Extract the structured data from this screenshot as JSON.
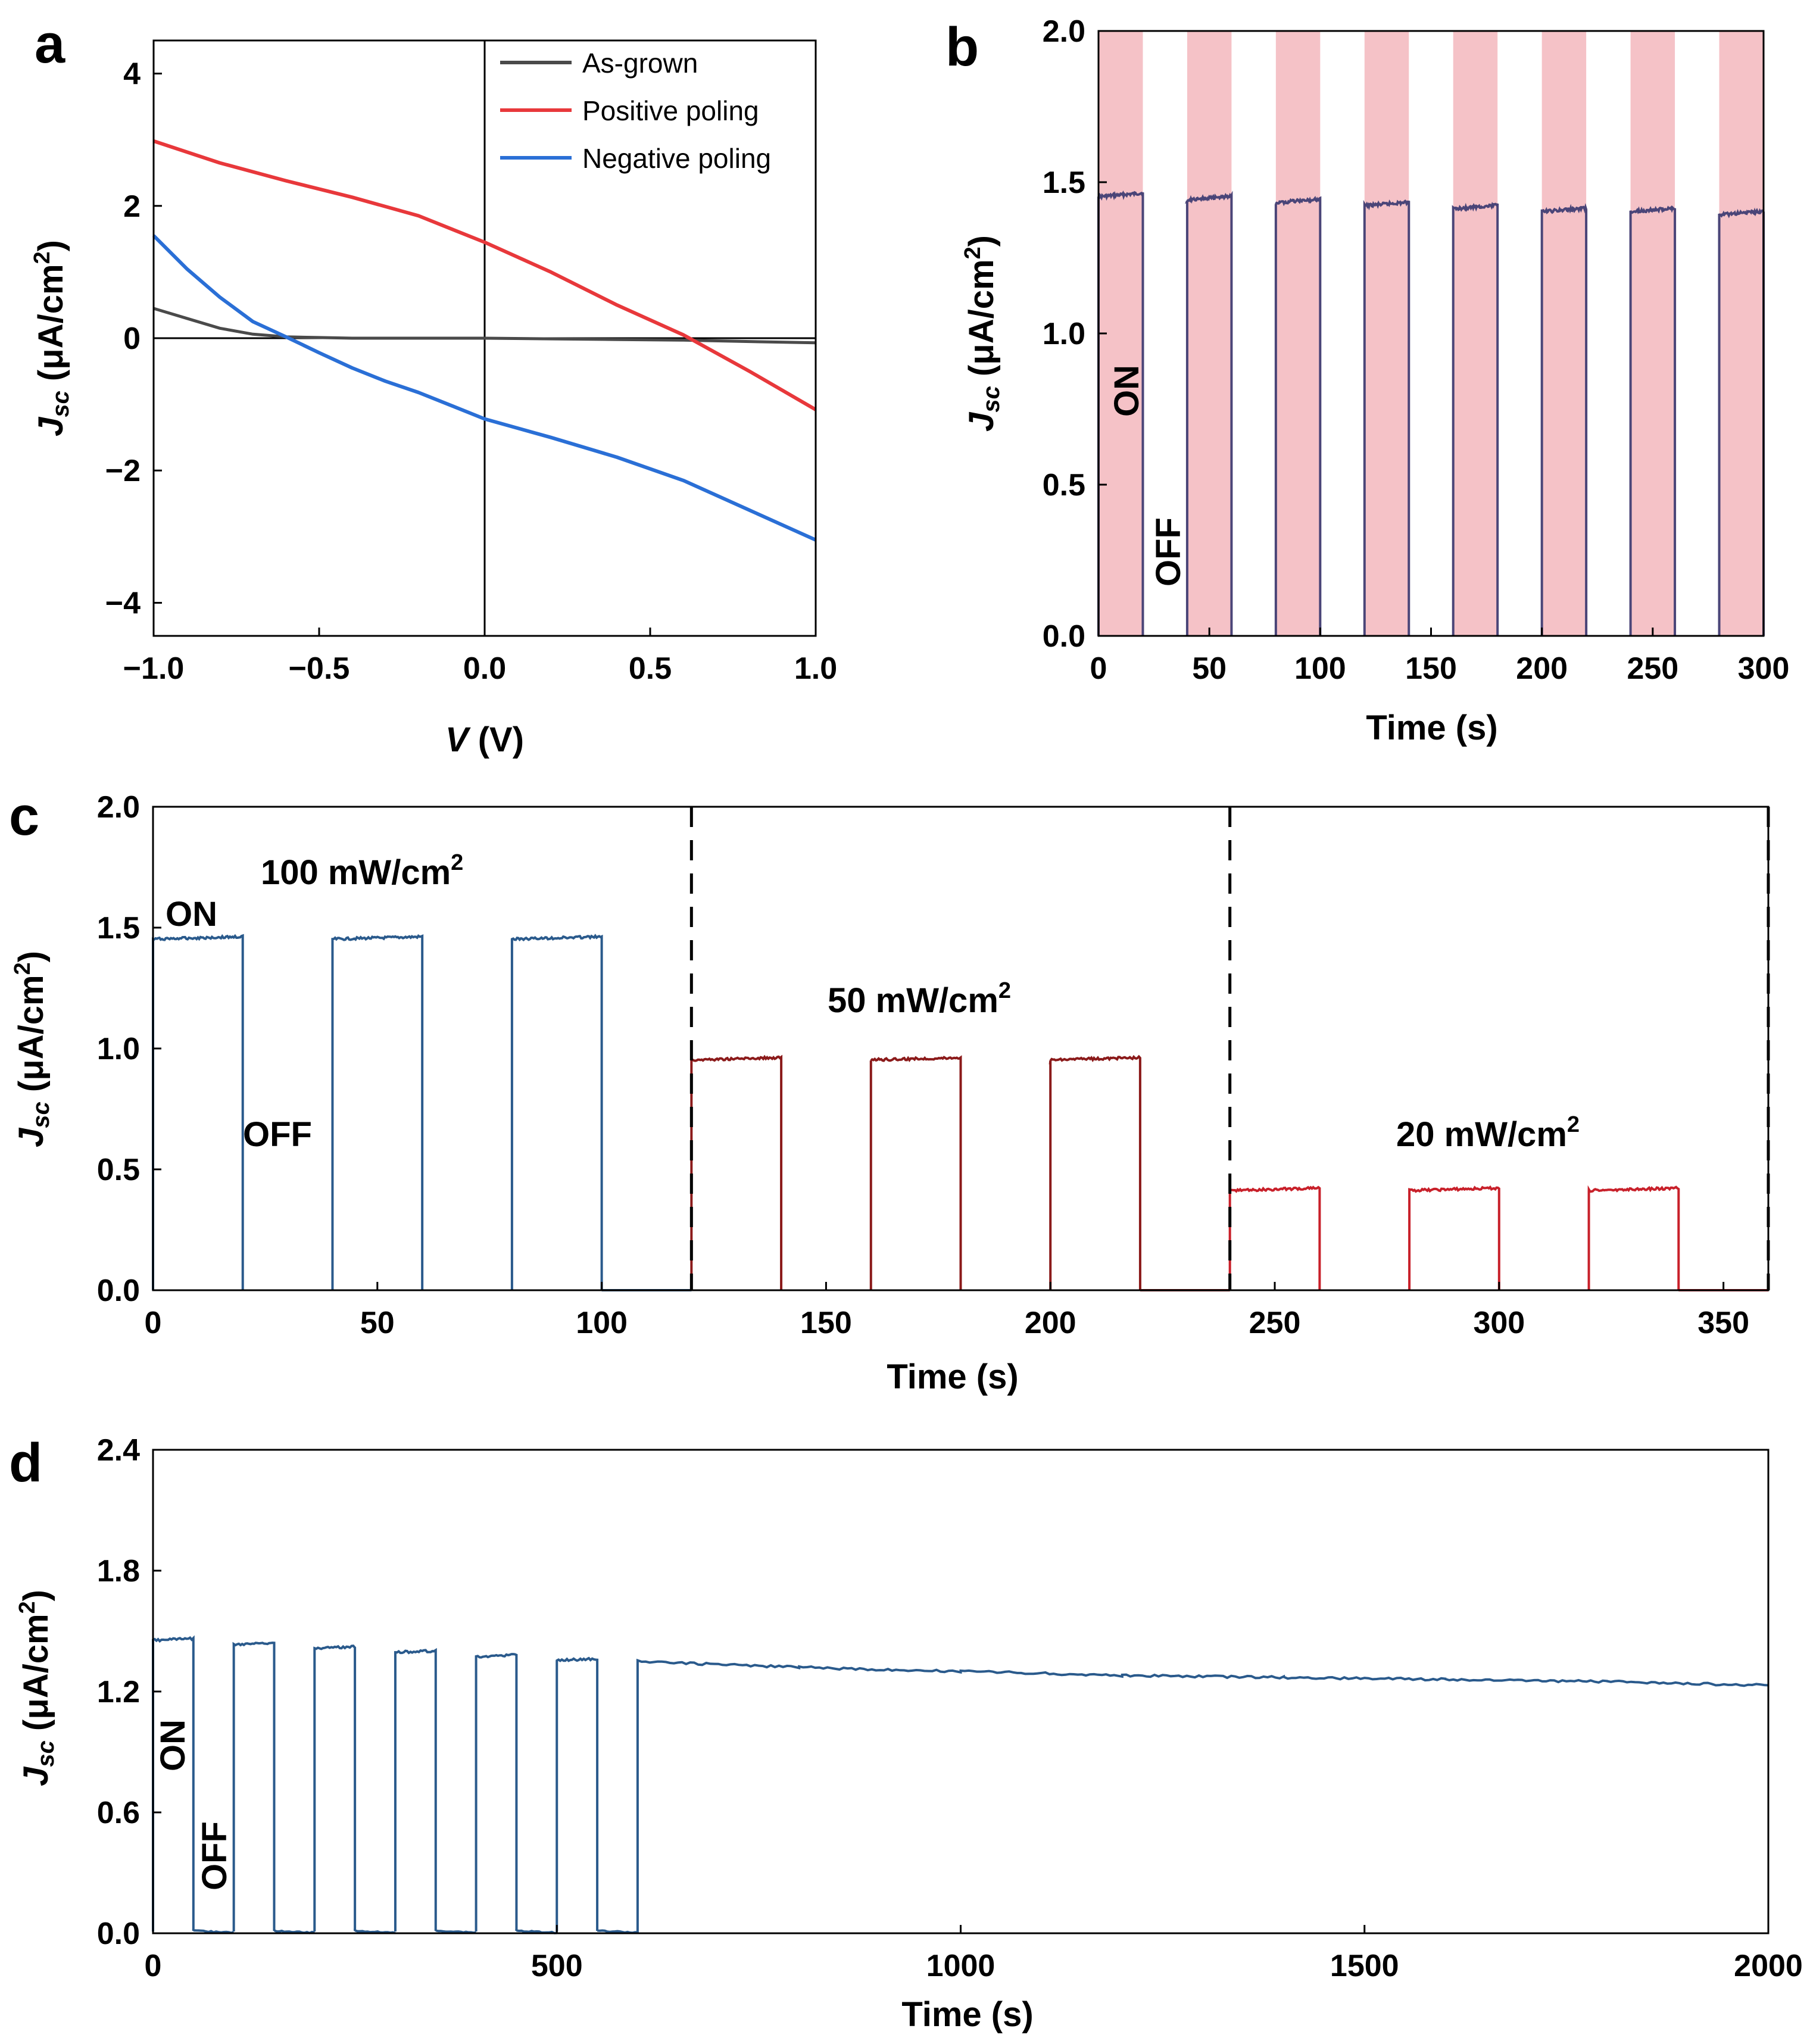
{
  "panels": {
    "a": "a",
    "b": "b",
    "c": "c",
    "d": "d"
  },
  "chart_data": [
    {
      "id": "a",
      "type": "line",
      "xlabel_var": "V",
      "xlabel_unit": " (V)",
      "ylabel_main": "J",
      "ylabel_sub": "sc",
      "ylabel_unit": " (μA/cm",
      "ylabel_sup": "2",
      "ylabel_close": ")",
      "xlim": [
        -1.0,
        1.0
      ],
      "ylim": [
        -4.5,
        4.5
      ],
      "xticks": [
        -1.0,
        -0.5,
        0.0,
        0.5,
        1.0
      ],
      "xtick_labels": [
        "−1.0",
        "−0.5",
        "0.0",
        "0.5",
        "1.0"
      ],
      "yticks": [
        -4,
        -2,
        0,
        2,
        4
      ],
      "ytick_labels": [
        "−4",
        "−2",
        "0",
        "2",
        "4"
      ],
      "legend_position": "top-right",
      "series": [
        {
          "name": "As-grown",
          "color": "#4a4a4a",
          "x": [
            -1.0,
            -0.9,
            -0.8,
            -0.7,
            -0.6,
            -0.5,
            -0.4,
            -0.2,
            0.0,
            0.2,
            0.4,
            0.6,
            0.8,
            1.0
          ],
          "y": [
            0.45,
            0.3,
            0.15,
            0.06,
            0.02,
            0.01,
            0.0,
            0.0,
            0.0,
            -0.01,
            -0.02,
            -0.03,
            -0.05,
            -0.07
          ]
        },
        {
          "name": "Positive poling",
          "color": "#e8383b",
          "x": [
            -1.0,
            -0.8,
            -0.6,
            -0.4,
            -0.2,
            0.0,
            0.2,
            0.4,
            0.6,
            0.8,
            1.0
          ],
          "y": [
            2.98,
            2.65,
            2.38,
            2.13,
            1.85,
            1.45,
            1.0,
            0.5,
            0.05,
            -0.5,
            -1.08
          ]
        },
        {
          "name": "Negative poling",
          "color": "#2a6fd6",
          "x": [
            -1.0,
            -0.9,
            -0.8,
            -0.7,
            -0.6,
            -0.5,
            -0.4,
            -0.3,
            -0.2,
            -0.1,
            0.0,
            0.2,
            0.4,
            0.6,
            0.8,
            1.0
          ],
          "y": [
            1.55,
            1.05,
            0.62,
            0.25,
            0.02,
            -0.22,
            -0.45,
            -0.65,
            -0.82,
            -1.02,
            -1.22,
            -1.5,
            -1.8,
            -2.15,
            -2.6,
            -3.05
          ]
        }
      ]
    },
    {
      "id": "b",
      "type": "line",
      "xlabel": "Time (s)",
      "ylabel_main": "J",
      "ylabel_sub": "sc",
      "ylabel_unit": " (μA/cm",
      "ylabel_sup": "2",
      "ylabel_close": ")",
      "xlim": [
        0,
        300
      ],
      "ylim": [
        0,
        2.0
      ],
      "xticks": [
        0,
        50,
        100,
        150,
        200,
        250,
        300
      ],
      "xtick_labels": [
        "0",
        "50",
        "100",
        "150",
        "200",
        "250",
        "300"
      ],
      "yticks": [
        0,
        0.5,
        1.0,
        1.5,
        2.0
      ],
      "ytick_labels": [
        "0.0",
        "0.5",
        "1.0",
        "1.5",
        "2.0"
      ],
      "on_label": "ON",
      "off_label": "OFF",
      "on_color": "#f5c2c7",
      "trace_color": "#4a4578",
      "on_intervals": [
        [
          0,
          20
        ],
        [
          40,
          60
        ],
        [
          80,
          100
        ],
        [
          120,
          140
        ],
        [
          160,
          180
        ],
        [
          200,
          220
        ],
        [
          240,
          260
        ],
        [
          280,
          300
        ]
      ],
      "on_levels": [
        1.46,
        1.45,
        1.44,
        1.43,
        1.42,
        1.41,
        1.41,
        1.4
      ]
    },
    {
      "id": "c",
      "type": "line",
      "xlabel": "Time (s)",
      "ylabel_main": "J",
      "ylabel_sub": "sc",
      "ylabel_unit": " (μA/cm",
      "ylabel_sup": "2",
      "ylabel_close": ")",
      "xlim": [
        0,
        360
      ],
      "ylim": [
        0,
        2.0
      ],
      "xticks": [
        0,
        50,
        100,
        150,
        200,
        250,
        300,
        350
      ],
      "xtick_labels": [
        "0",
        "50",
        "100",
        "150",
        "200",
        "250",
        "300",
        "350"
      ],
      "yticks": [
        0,
        0.5,
        1.0,
        1.5,
        2.0
      ],
      "ytick_labels": [
        "0.0",
        "0.5",
        "1.0",
        "1.5",
        "2.0"
      ],
      "on_label": "ON",
      "off_label": "OFF",
      "dividers": [
        120,
        240,
        360
      ],
      "segments": [
        {
          "label": "100 mW/cm",
          "sup": "2",
          "color": "#2a5a8c",
          "intervals": [
            [
              0,
              20
            ],
            [
              40,
              60
            ],
            [
              80,
              100
            ]
          ],
          "level": 1.46
        },
        {
          "label": "50 mW/cm",
          "sup": "2",
          "color": "#8b1a1a",
          "intervals": [
            [
              120,
              140
            ],
            [
              160,
              180
            ],
            [
              200,
              220
            ]
          ],
          "level": 0.96
        },
        {
          "label": "20 mW/cm",
          "sup": "2",
          "color": "#c8202a",
          "intervals": [
            [
              240,
              260
            ],
            [
              280,
              300
            ],
            [
              320,
              340
            ]
          ],
          "level": 0.42
        }
      ]
    },
    {
      "id": "d",
      "type": "line",
      "xlabel": "Time (s)",
      "ylabel_main": "J",
      "ylabel_sub": "sc",
      "ylabel_unit": " (μA/cm",
      "ylabel_sup": "2",
      "ylabel_close": ")",
      "xlim": [
        0,
        2000
      ],
      "ylim": [
        0,
        2.4
      ],
      "xticks": [
        0,
        500,
        1000,
        1500,
        2000
      ],
      "xtick_labels": [
        "0",
        "500",
        "1000",
        "1500",
        "2000"
      ],
      "yticks": [
        0,
        0.6,
        1.2,
        1.8,
        2.4
      ],
      "ytick_labels": [
        "0.0",
        "0.6",
        "1.2",
        "1.8",
        "2.4"
      ],
      "on_label": "ON",
      "off_label": "OFF",
      "trace_color": "#2a5a8c",
      "on_intervals": [
        [
          0,
          50
        ],
        [
          100,
          150
        ],
        [
          200,
          250
        ],
        [
          300,
          350
        ],
        [
          400,
          450
        ],
        [
          500,
          550
        ]
      ],
      "on_levels": [
        1.46,
        1.44,
        1.42,
        1.4,
        1.38,
        1.36
      ],
      "continuous_start": 600,
      "continuous_x": [
        600,
        800,
        1000,
        1200,
        1400,
        1600,
        1800,
        2000
      ],
      "continuous_y": [
        1.35,
        1.32,
        1.3,
        1.28,
        1.27,
        1.26,
        1.25,
        1.23
      ]
    }
  ]
}
